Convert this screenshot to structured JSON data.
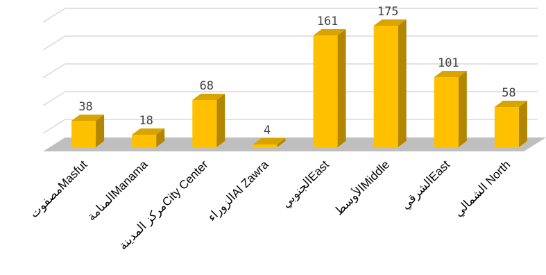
{
  "chart_data": {
    "type": "bar",
    "title": "",
    "xlabel": "",
    "ylabel": "",
    "categories": [
      "مصفوتMasfut",
      "المنامةManama",
      "مركز المدينةCity Center",
      "الزوراءAl Zawra",
      "الجنوبيEast",
      "الأوسطMiddle",
      "الشرقيEast",
      "الشمالي North"
    ],
    "values": [
      38,
      18,
      68,
      4,
      161,
      175,
      101,
      58
    ],
    "data_labels": [
      "38",
      "18",
      "68",
      "4",
      "161",
      "175",
      "101",
      "58"
    ],
    "ylim": [
      0,
      200
    ],
    "grid": true,
    "legend": "none",
    "colors": {
      "bar_front": "#ffc000",
      "bar_side": "#b38600",
      "bar_top": "#d9a400",
      "floor": "#bfbfbf",
      "gridline": "#d9d9d9"
    }
  }
}
